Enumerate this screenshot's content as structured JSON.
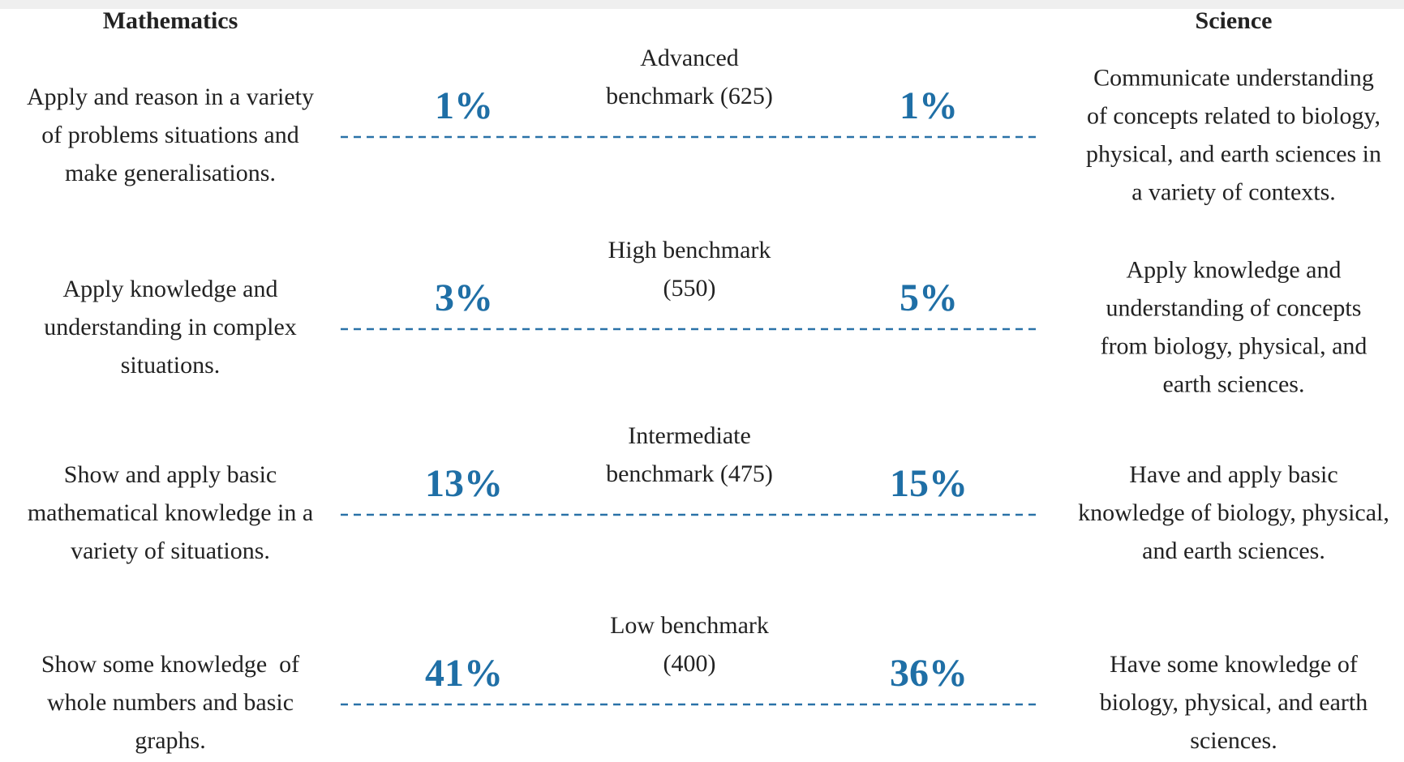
{
  "headers": {
    "mathematics": "Mathematics",
    "science": "Science"
  },
  "rows": [
    {
      "benchmark": [
        "Advanced",
        "benchmark (625)"
      ],
      "math_percent": "1%",
      "science_percent": "1%",
      "math_text": [
        "Apply and reason in a variety",
        "of problems situations and",
        "make generalisations."
      ],
      "science_text": [
        "Communicate understanding",
        "of concepts related to biology,",
        "physical, and earth sciences in",
        "a variety of contexts."
      ]
    },
    {
      "benchmark": [
        "High benchmark",
        "(550)"
      ],
      "math_percent": "3%",
      "science_percent": "5%",
      "math_text": [
        "Apply knowledge and",
        "understanding in complex",
        "situations."
      ],
      "science_text": [
        "Apply knowledge and",
        "understanding of concepts",
        "from biology, physical, and",
        "earth sciences."
      ]
    },
    {
      "benchmark": [
        "Intermediate",
        "benchmark (475)"
      ],
      "math_percent": "13%",
      "science_percent": "15%",
      "math_text": [
        "Show and apply basic",
        "mathematical knowledge in a",
        "variety of situations."
      ],
      "science_text": [
        "Have and apply basic",
        "knowledge of biology, physical,",
        "and earth sciences."
      ]
    },
    {
      "benchmark": [
        "Low benchmark",
        "(400)"
      ],
      "math_percent": "41%",
      "science_percent": "36%",
      "math_text": [
        "Show some knowledge  of",
        "whole numbers and basic",
        "graphs."
      ],
      "science_text": [
        "Have some knowledge of",
        "biology, physical, and earth",
        "sciences."
      ]
    }
  ]
}
